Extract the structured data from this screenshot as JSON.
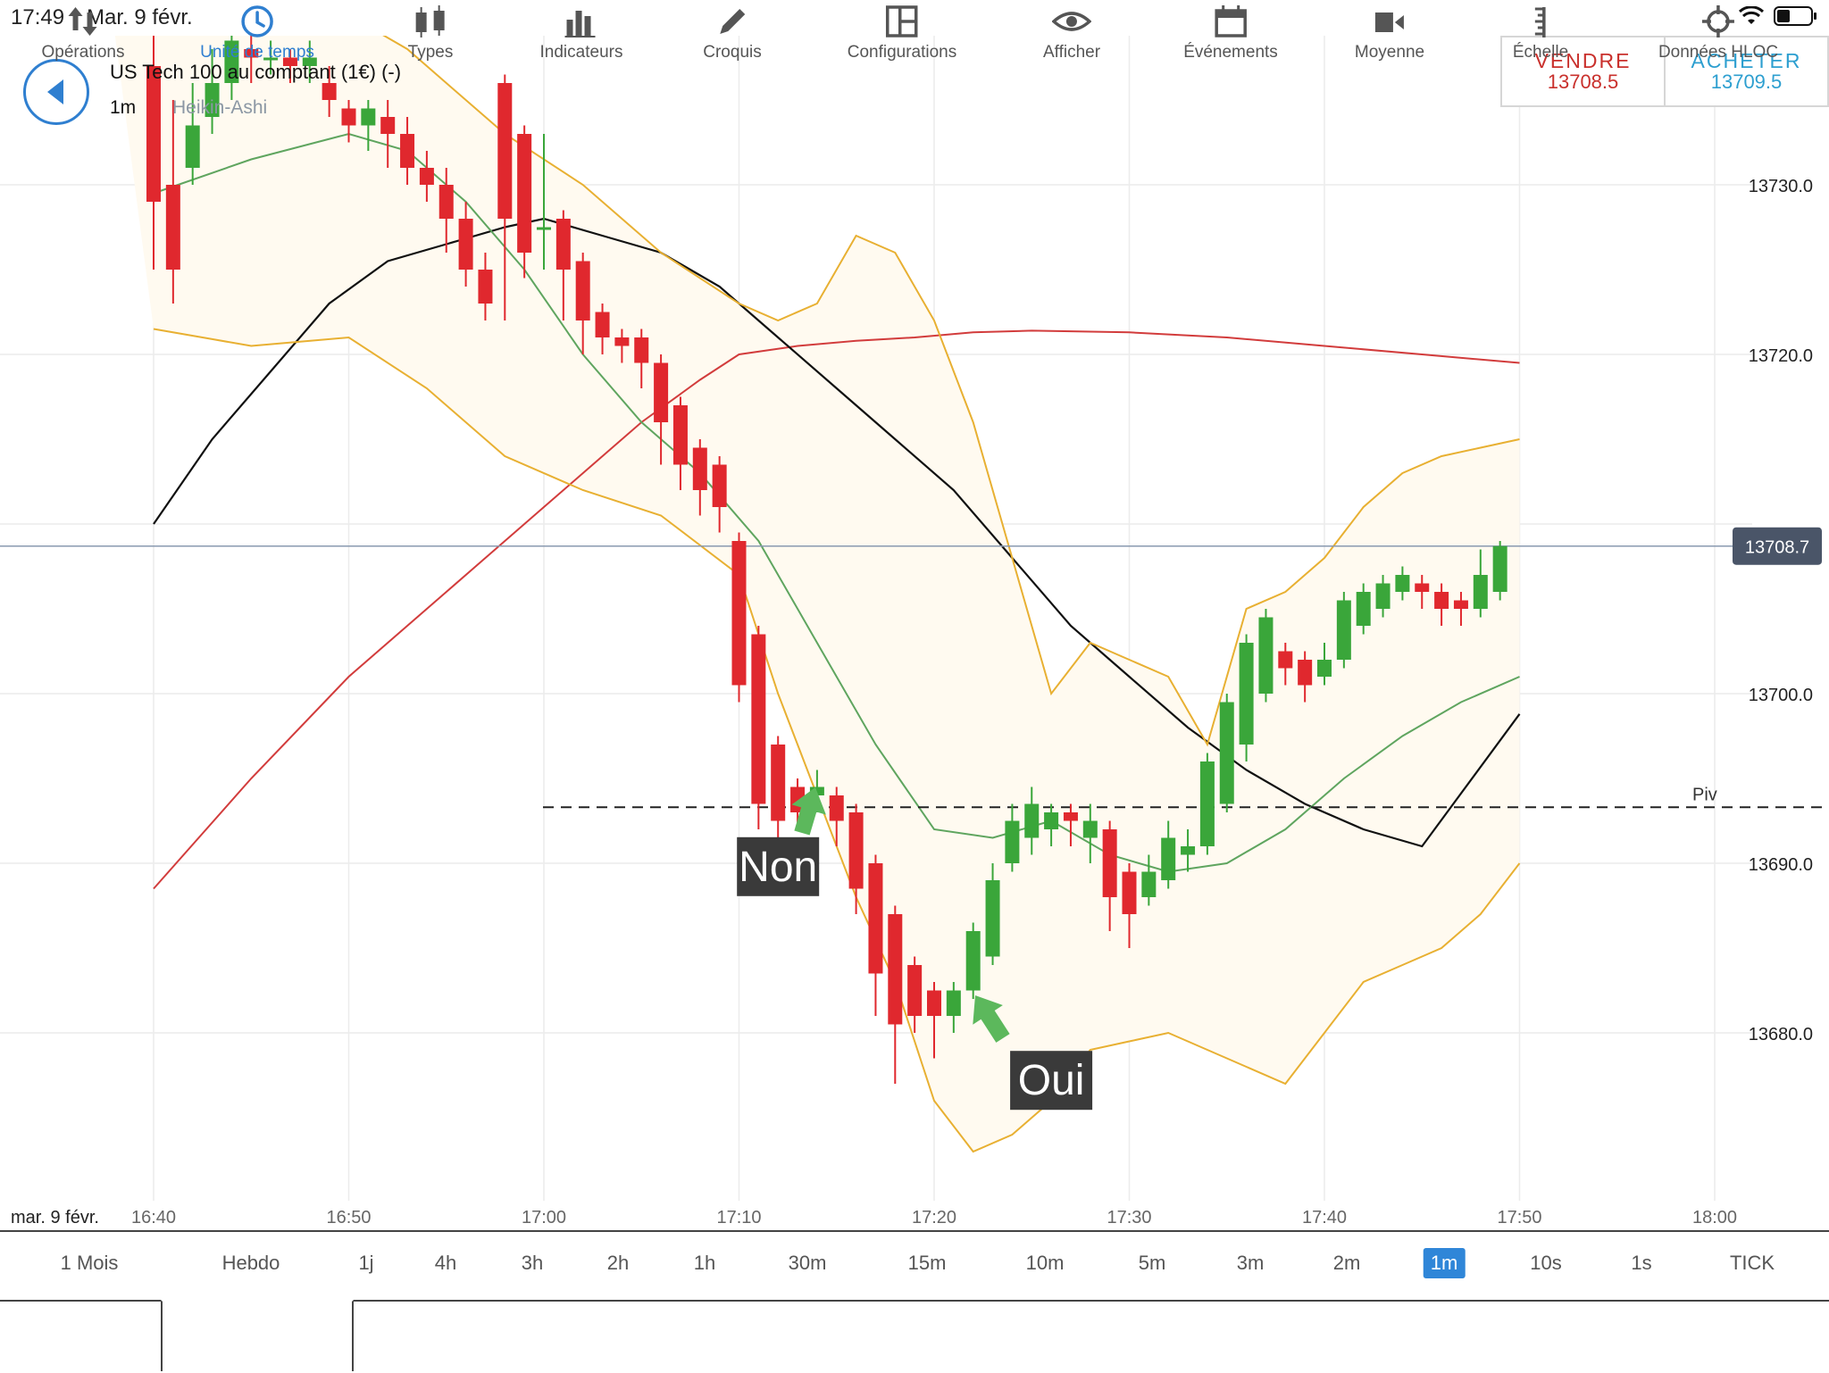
{
  "status_bar": {
    "time": "17:49",
    "date": "Mar. 9 févr."
  },
  "instrument": {
    "name": "US Tech 100 au comptant (1€) (-)",
    "timeframe": "1m",
    "chart_type": "Heikin-Ashi"
  },
  "trade": {
    "sell_label": "VENDRE",
    "sell_price": "13708.5",
    "buy_label": "ACHETER",
    "buy_price": "13709.5"
  },
  "colors": {
    "up": "#3aa63a",
    "down": "#e0282e",
    "band": "#e8b032",
    "band_fill": "#fffaf0",
    "mid": "#5fa55f",
    "ma_black": "#111111",
    "ma_red": "#d23c3c",
    "price_line": "#8a9ab0",
    "price_tag": "#4a5568"
  },
  "chart_data": {
    "type": "candlestick",
    "y_ticks": [
      "13730.0",
      "13720.0",
      "13700.0",
      "13690.0",
      "13680.0"
    ],
    "y_ticks_values": [
      13730,
      13720,
      13700,
      13690,
      13680
    ],
    "x_date_label": "mar. 9 févr.",
    "x_ticks": [
      "16:40",
      "16:50",
      "17:00",
      "17:10",
      "17:20",
      "17:30",
      "17:40",
      "17:50",
      "18:00"
    ],
    "current_price": "13708.7",
    "pivot_label": "Piv",
    "pivot_value": 13693.3,
    "annotations": [
      {
        "text": "Non",
        "time": "17:12",
        "value": 13689.8
      },
      {
        "text": "Oui",
        "time": "17:26",
        "value": 13677.2
      }
    ],
    "candles": [
      {
        "t": "16:40",
        "o": 13737.0,
        "c": 13729.0,
        "h": 13742.0,
        "l": 13725.0
      },
      {
        "t": "16:41",
        "o": 13730.0,
        "c": 13725.0,
        "h": 13735.0,
        "l": 13723.0
      },
      {
        "t": "16:42",
        "o": 13731.0,
        "c": 13733.5,
        "h": 13736.0,
        "l": 13730.0
      },
      {
        "t": "16:43",
        "o": 13734.0,
        "c": 13736.0,
        "h": 13738.0,
        "l": 13733.0
      },
      {
        "t": "16:44",
        "o": 13736.0,
        "c": 13738.5,
        "h": 13740.0,
        "l": 13735.0
      },
      {
        "t": "16:45",
        "o": 13738.0,
        "c": 13737.5,
        "h": 13739.0,
        "l": 13736.0
      },
      {
        "t": "16:46",
        "o": 13737.5,
        "c": 13737.5,
        "h": 13738.5,
        "l": 13736.5
      },
      {
        "t": "16:47",
        "o": 13737.5,
        "c": 13737.0,
        "h": 13738.0,
        "l": 13736.0
      },
      {
        "t": "16:48",
        "o": 13737.0,
        "c": 13737.5,
        "h": 13738.5,
        "l": 13736.0
      },
      {
        "t": "16:49",
        "o": 13736.0,
        "c": 13735.0,
        "h": 13737.0,
        "l": 13734.0
      },
      {
        "t": "16:50",
        "o": 13734.5,
        "c": 13733.5,
        "h": 13735.0,
        "l": 13732.5
      },
      {
        "t": "16:51",
        "o": 13733.5,
        "c": 13734.5,
        "h": 13735.0,
        "l": 13732.0
      },
      {
        "t": "16:52",
        "o": 13734.0,
        "c": 13733.0,
        "h": 13735.0,
        "l": 13731.0
      },
      {
        "t": "16:53",
        "o": 13733.0,
        "c": 13731.0,
        "h": 13734.0,
        "l": 13730.0
      },
      {
        "t": "16:54",
        "o": 13731.0,
        "c": 13730.0,
        "h": 13732.0,
        "l": 13729.0
      },
      {
        "t": "16:55",
        "o": 13730.0,
        "c": 13728.0,
        "h": 13731.0,
        "l": 13726.0
      },
      {
        "t": "16:56",
        "o": 13728.0,
        "c": 13725.0,
        "h": 13729.0,
        "l": 13724.0
      },
      {
        "t": "16:57",
        "o": 13725.0,
        "c": 13723.0,
        "h": 13726.0,
        "l": 13722.0
      },
      {
        "t": "16:58",
        "o": 13736.0,
        "c": 13728.0,
        "h": 13736.5,
        "l": 13722.0
      },
      {
        "t": "16:59",
        "o": 13733.0,
        "c": 13726.0,
        "h": 13733.5,
        "l": 13724.5
      },
      {
        "t": "17:00",
        "o": 13727.5,
        "c": 13727.5,
        "h": 13733.0,
        "l": 13725.0
      },
      {
        "t": "17:01",
        "o": 13728.0,
        "c": 13725.0,
        "h": 13728.5,
        "l": 13722.0
      },
      {
        "t": "17:02",
        "o": 13725.5,
        "c": 13722.0,
        "h": 13726.0,
        "l": 13720.0
      },
      {
        "t": "17:03",
        "o": 13722.5,
        "c": 13721.0,
        "h": 13723.0,
        "l": 13720.0
      },
      {
        "t": "17:04",
        "o": 13721.0,
        "c": 13720.5,
        "h": 13721.5,
        "l": 13719.5
      },
      {
        "t": "17:05",
        "o": 13721.0,
        "c": 13719.5,
        "h": 13721.5,
        "l": 13718.0
      },
      {
        "t": "17:06",
        "o": 13719.5,
        "c": 13716.0,
        "h": 13720.0,
        "l": 13713.5
      },
      {
        "t": "17:07",
        "o": 13717.0,
        "c": 13713.5,
        "h": 13717.5,
        "l": 13712.0
      },
      {
        "t": "17:08",
        "o": 13714.5,
        "c": 13712.0,
        "h": 13715.0,
        "l": 13710.5
      },
      {
        "t": "17:09",
        "o": 13713.5,
        "c": 13711.0,
        "h": 13714.0,
        "l": 13709.5
      },
      {
        "t": "17:10",
        "o": 13709.0,
        "c": 13700.5,
        "h": 13709.5,
        "l": 13699.5
      },
      {
        "t": "17:11",
        "o": 13703.5,
        "c": 13693.5,
        "h": 13704.0,
        "l": 13692.0
      },
      {
        "t": "17:12",
        "o": 13697.0,
        "c": 13692.5,
        "h": 13697.5,
        "l": 13691.5
      },
      {
        "t": "17:13",
        "o": 13694.5,
        "c": 13693.0,
        "h": 13695.0,
        "l": 13692.0
      },
      {
        "t": "17:14",
        "o": 13694.0,
        "c": 13694.5,
        "h": 13695.5,
        "l": 13693.0
      },
      {
        "t": "17:15",
        "o": 13694.0,
        "c": 13692.5,
        "h": 13694.5,
        "l": 13691.0
      },
      {
        "t": "17:16",
        "o": 13693.0,
        "c": 13688.5,
        "h": 13693.5,
        "l": 13687.0
      },
      {
        "t": "17:17",
        "o": 13690.0,
        "c": 13683.5,
        "h": 13690.5,
        "l": 13681.0
      },
      {
        "t": "17:18",
        "o": 13687.0,
        "c": 13680.5,
        "h": 13687.5,
        "l": 13677.0
      },
      {
        "t": "17:19",
        "o": 13684.0,
        "c": 13681.0,
        "h": 13684.5,
        "l": 13680.0
      },
      {
        "t": "17:20",
        "o": 13682.5,
        "c": 13681.0,
        "h": 13683.0,
        "l": 13678.5
      },
      {
        "t": "17:21",
        "o": 13681.0,
        "c": 13682.5,
        "h": 13683.0,
        "l": 13680.0
      },
      {
        "t": "17:22",
        "o": 13682.5,
        "c": 13686.0,
        "h": 13686.5,
        "l": 13682.0
      },
      {
        "t": "17:23",
        "o": 13684.5,
        "c": 13689.0,
        "h": 13690.0,
        "l": 13684.0
      },
      {
        "t": "17:24",
        "o": 13690.0,
        "c": 13692.5,
        "h": 13693.5,
        "l": 13689.5
      },
      {
        "t": "17:25",
        "o": 13691.5,
        "c": 13693.5,
        "h": 13694.5,
        "l": 13690.5
      },
      {
        "t": "17:26",
        "o": 13692.0,
        "c": 13693.0,
        "h": 13693.5,
        "l": 13691.0
      },
      {
        "t": "17:27",
        "o": 13693.0,
        "c": 13692.5,
        "h": 13693.5,
        "l": 13691.0
      },
      {
        "t": "17:28",
        "o": 13691.5,
        "c": 13692.5,
        "h": 13693.5,
        "l": 13690.0
      },
      {
        "t": "17:29",
        "o": 13692.0,
        "c": 13688.0,
        "h": 13692.5,
        "l": 13686.0
      },
      {
        "t": "17:30",
        "o": 13689.5,
        "c": 13687.0,
        "h": 13690.0,
        "l": 13685.0
      },
      {
        "t": "17:31",
        "o": 13688.0,
        "c": 13689.5,
        "h": 13690.5,
        "l": 13687.5
      },
      {
        "t": "17:32",
        "o": 13689.0,
        "c": 13691.5,
        "h": 13692.5,
        "l": 13688.5
      },
      {
        "t": "17:33",
        "o": 13690.5,
        "c": 13691.0,
        "h": 13692.0,
        "l": 13689.5
      },
      {
        "t": "17:34",
        "o": 13691.0,
        "c": 13696.0,
        "h": 13696.5,
        "l": 13690.5
      },
      {
        "t": "17:35",
        "o": 13693.5,
        "c": 13699.5,
        "h": 13700.0,
        "l": 13693.0
      },
      {
        "t": "17:36",
        "o": 13697.0,
        "c": 13703.0,
        "h": 13703.5,
        "l": 13696.0
      },
      {
        "t": "17:37",
        "o": 13700.0,
        "c": 13704.5,
        "h": 13705.0,
        "l": 13699.5
      },
      {
        "t": "17:38",
        "o": 13702.5,
        "c": 13701.5,
        "h": 13703.0,
        "l": 13700.5
      },
      {
        "t": "17:39",
        "o": 13702.0,
        "c": 13700.5,
        "h": 13702.5,
        "l": 13699.5
      },
      {
        "t": "17:40",
        "o": 13701.0,
        "c": 13702.0,
        "h": 13703.0,
        "l": 13700.5
      },
      {
        "t": "17:41",
        "o": 13702.0,
        "c": 13705.5,
        "h": 13706.0,
        "l": 13701.5
      },
      {
        "t": "17:42",
        "o": 13704.0,
        "c": 13706.0,
        "h": 13706.5,
        "l": 13703.5
      },
      {
        "t": "17:43",
        "o": 13705.0,
        "c": 13706.5,
        "h": 13707.0,
        "l": 13704.5
      },
      {
        "t": "17:44",
        "o": 13706.0,
        "c": 13707.0,
        "h": 13707.5,
        "l": 13705.5
      },
      {
        "t": "17:45",
        "o": 13706.5,
        "c": 13706.0,
        "h": 13707.0,
        "l": 13705.0
      },
      {
        "t": "17:46",
        "o": 13706.0,
        "c": 13705.0,
        "h": 13706.5,
        "l": 13704.0
      },
      {
        "t": "17:47",
        "o": 13705.5,
        "c": 13705.0,
        "h": 13706.0,
        "l": 13704.0
      },
      {
        "t": "17:48",
        "o": 13705.0,
        "c": 13707.0,
        "h": 13708.5,
        "l": 13704.5
      },
      {
        "t": "17:49",
        "o": 13706.0,
        "c": 13708.7,
        "h": 13709.0,
        "l": 13705.5
      }
    ],
    "bollinger_upper": [
      [
        "16:38",
        13739
      ],
      [
        "16:43",
        13740
      ],
      [
        "16:50",
        13740
      ],
      [
        "16:53",
        13738
      ],
      [
        "16:58",
        13733
      ],
      [
        "17:02",
        13730
      ],
      [
        "17:06",
        13726
      ],
      [
        "17:10",
        13723
      ],
      [
        "17:12",
        13722
      ],
      [
        "17:14",
        13723
      ],
      [
        "17:16",
        13727
      ],
      [
        "17:18",
        13726
      ],
      [
        "17:20",
        13722
      ],
      [
        "17:22",
        13716
      ],
      [
        "17:24",
        13708
      ],
      [
        "17:26",
        13700
      ],
      [
        "17:28",
        13703
      ],
      [
        "17:30",
        13702
      ],
      [
        "17:32",
        13701
      ],
      [
        "17:34",
        13697
      ],
      [
        "17:36",
        13705
      ],
      [
        "17:38",
        13706
      ],
      [
        "17:40",
        13708
      ],
      [
        "17:42",
        13711
      ],
      [
        "17:44",
        13713
      ],
      [
        "17:46",
        13714
      ],
      [
        "17:48",
        13714.5
      ],
      [
        "17:50",
        13715
      ]
    ],
    "bollinger_lower": [
      [
        "16:40",
        13721.5
      ],
      [
        "16:45",
        13720.5
      ],
      [
        "16:50",
        13721
      ],
      [
        "16:54",
        13718
      ],
      [
        "16:58",
        13714
      ],
      [
        "17:02",
        13712
      ],
      [
        "17:06",
        13710.5
      ],
      [
        "17:10",
        13707
      ],
      [
        "17:12",
        13700
      ],
      [
        "17:14",
        13694
      ],
      [
        "17:16",
        13688
      ],
      [
        "17:18",
        13683
      ],
      [
        "17:20",
        13676
      ],
      [
        "17:22",
        13673
      ],
      [
        "17:24",
        13674
      ],
      [
        "17:26",
        13676
      ],
      [
        "17:28",
        13679
      ],
      [
        "17:30",
        13679.5
      ],
      [
        "17:32",
        13680
      ],
      [
        "17:34",
        13679
      ],
      [
        "17:36",
        13678
      ],
      [
        "17:38",
        13677
      ],
      [
        "17:40",
        13680
      ],
      [
        "17:42",
        13683
      ],
      [
        "17:44",
        13684
      ],
      [
        "17:46",
        13685
      ],
      [
        "17:48",
        13687
      ],
      [
        "17:50",
        13690
      ]
    ],
    "middle_band": [
      [
        "16:40",
        13729.5
      ],
      [
        "16:45",
        13731.5
      ],
      [
        "16:50",
        13733
      ],
      [
        "16:53",
        13732
      ],
      [
        "16:56",
        13729
      ],
      [
        "16:59",
        13725
      ],
      [
        "17:02",
        13720
      ],
      [
        "17:05",
        13716
      ],
      [
        "17:08",
        13713
      ],
      [
        "17:11",
        13709
      ],
      [
        "17:14",
        13703
      ],
      [
        "17:17",
        13697
      ],
      [
        "17:20",
        13692
      ],
      [
        "17:23",
        13691.5
      ],
      [
        "17:26",
        13692.5
      ],
      [
        "17:29",
        13690.5
      ],
      [
        "17:32",
        13689.5
      ],
      [
        "17:35",
        13690
      ],
      [
        "17:38",
        13692
      ],
      [
        "17:41",
        13695
      ],
      [
        "17:44",
        13697.5
      ],
      [
        "17:47",
        13699.5
      ],
      [
        "17:50",
        13701
      ]
    ],
    "ma_black": [
      [
        "16:40",
        13710
      ],
      [
        "16:43",
        13715
      ],
      [
        "16:46",
        13719
      ],
      [
        "16:49",
        13723
      ],
      [
        "16:52",
        13725.5
      ],
      [
        "16:55",
        13726.5
      ],
      [
        "16:58",
        13727.5
      ],
      [
        "17:00",
        13728
      ],
      [
        "17:03",
        13727
      ],
      [
        "17:06",
        13726
      ],
      [
        "17:09",
        13724
      ],
      [
        "17:12",
        13721
      ],
      [
        "17:15",
        13718
      ],
      [
        "17:18",
        13715
      ],
      [
        "17:21",
        13712
      ],
      [
        "17:24",
        13708
      ],
      [
        "17:27",
        13704
      ],
      [
        "17:30",
        13701
      ],
      [
        "17:33",
        13698
      ],
      [
        "17:36",
        13695.5
      ],
      [
        "17:39",
        13693.5
      ],
      [
        "17:42",
        13692
      ],
      [
        "17:45",
        13691
      ],
      [
        "17:50",
        13698.8
      ]
    ],
    "ma_red": [
      [
        "16:40",
        13688.5
      ],
      [
        "16:45",
        13695
      ],
      [
        "16:50",
        13701
      ],
      [
        "16:55",
        13706
      ],
      [
        "17:00",
        13711
      ],
      [
        "17:05",
        13716
      ],
      [
        "17:08",
        13718.5
      ],
      [
        "17:10",
        13720
      ],
      [
        "17:13",
        13720.5
      ],
      [
        "17:16",
        13720.8
      ],
      [
        "17:19",
        13721
      ],
      [
        "17:22",
        13721.3
      ],
      [
        "17:25",
        13721.4
      ],
      [
        "17:30",
        13721.3
      ],
      [
        "17:35",
        13721
      ],
      [
        "17:40",
        13720.5
      ],
      [
        "17:45",
        13720
      ],
      [
        "17:50",
        13719.5
      ]
    ]
  },
  "timeframes": [
    "1 Mois",
    "Hebdo",
    "1j",
    "4h",
    "3h",
    "2h",
    "1h",
    "30m",
    "15m",
    "10m",
    "5m",
    "3m",
    "2m",
    "1m",
    "10s",
    "1s",
    "TICK"
  ],
  "active_timeframe": "1m",
  "toolbar": [
    {
      "label": "Opérations",
      "icon": "arrows-icon"
    },
    {
      "label": "Unité de temps",
      "icon": "clock-icon"
    },
    {
      "label": "Types",
      "icon": "candles-icon"
    },
    {
      "label": "Indicateurs",
      "icon": "bars-icon"
    },
    {
      "label": "Croquis",
      "icon": "pencil-icon"
    },
    {
      "label": "Configurations",
      "icon": "layout-icon"
    },
    {
      "label": "Afficher",
      "icon": "eye-icon"
    },
    {
      "label": "Événements",
      "icon": "calendar-icon"
    },
    {
      "label": "Moyenne",
      "icon": "camera-icon"
    },
    {
      "label": "Échelle",
      "icon": "scale-icon"
    },
    {
      "label": "Données HLOC",
      "icon": "crosshair-icon"
    }
  ],
  "active_tool": "Unité de temps"
}
